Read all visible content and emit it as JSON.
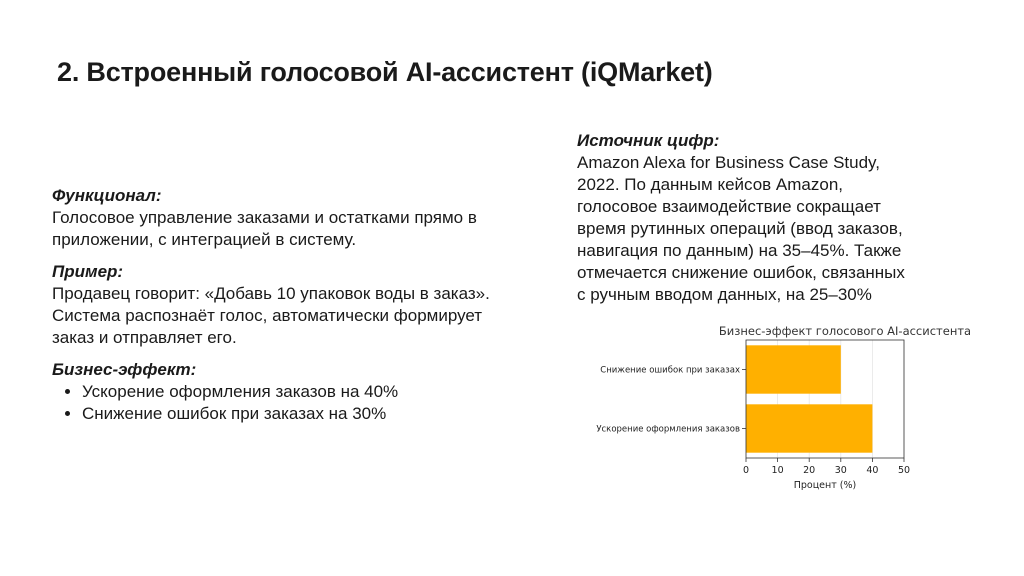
{
  "slide": {
    "title": "2. Встроенный голосовой AI-ассистент (iQMarket)"
  },
  "left": {
    "functional": {
      "heading": "Функционал:",
      "text": "Голосовое управление заказами и остатками прямо в\nприложении, с интеграцией в систему."
    },
    "example": {
      "heading": "Пример:",
      "text": "Продавец говорит: «Добавь 10 упаковок воды в заказ».\nСистема распознаёт голос, автоматически формирует\nзаказ и отправляет его."
    },
    "effect": {
      "heading": "Бизнес-эффект:",
      "bullets": [
        "Ускорение оформления заказов на 40%",
        "Снижение ошибок при заказах на 30%"
      ]
    }
  },
  "right": {
    "source": {
      "heading": "Источник цифр:",
      "text": "Amazon Alexa for Business Case Study,\n2022. По данным кейсов Amazon,\nголосовое взаимодействие сокращает\nвремя рутинных операций (ввод заказов,\nнавигация по данным) на 35–45%. Также\nотмечается снижение ошибок, связанных\nс ручным вводом данных, на 25–30%"
    }
  },
  "chart_data": {
    "type": "bar",
    "orientation": "horizontal",
    "title": "Бизнес-эффект голосового AI-ассистента",
    "xlabel": "Процент (%)",
    "ylabel": "",
    "categories": [
      "Снижение ошибок при заказах",
      "Ускорение оформления заказов"
    ],
    "values": [
      30,
      40
    ],
    "xlim": [
      0,
      50
    ],
    "xticks": [
      "0",
      "10",
      "20",
      "30",
      "40",
      "50"
    ],
    "grid": true,
    "bar_color": "#FFB000"
  }
}
